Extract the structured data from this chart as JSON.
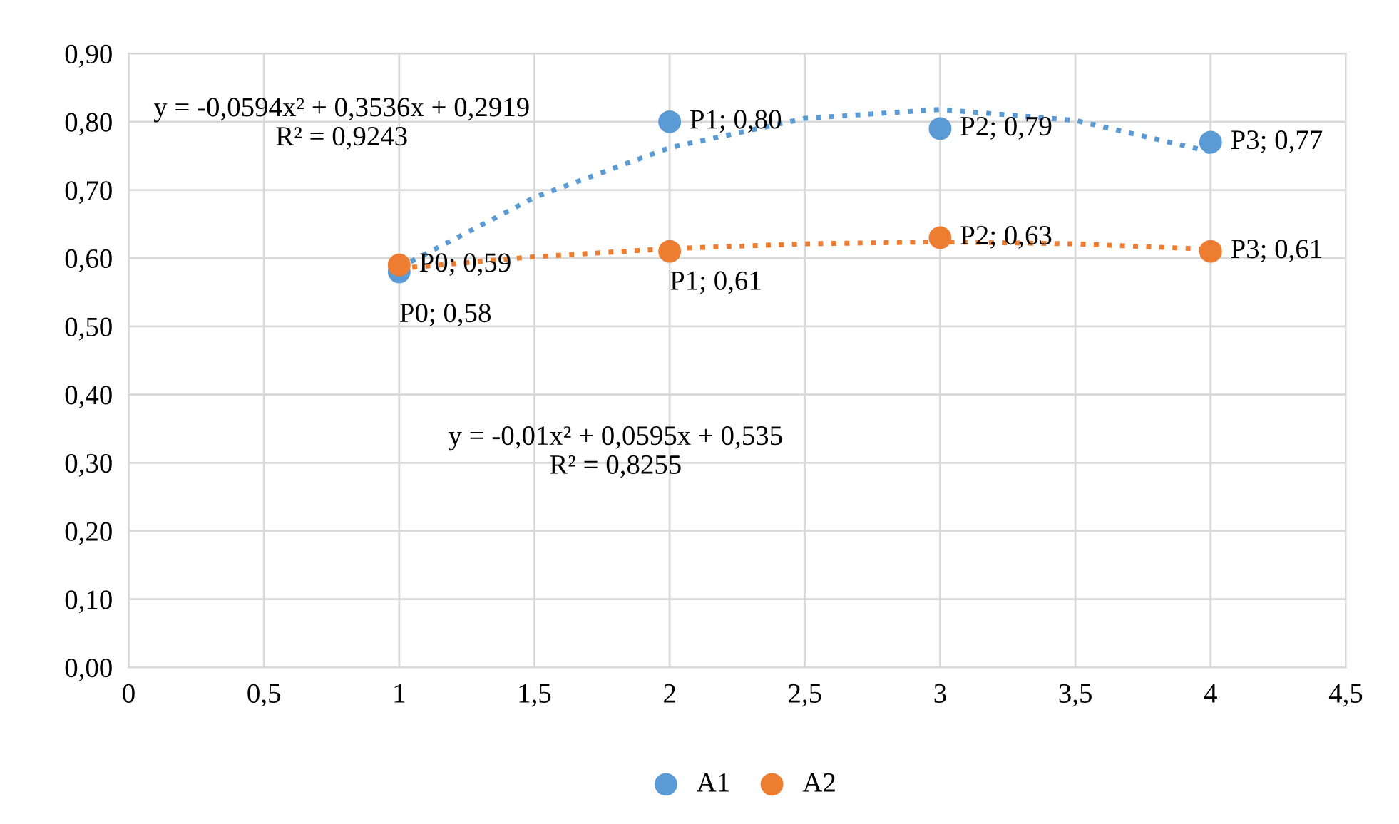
{
  "chart_data": {
    "type": "scatter",
    "xlim": [
      0,
      4.5
    ],
    "ylim": [
      0,
      0.9
    ],
    "xticks": [
      0,
      {
        "value": 0.5,
        "label": "0,5"
      },
      1,
      {
        "value": 1.5,
        "label": "1,5"
      },
      2,
      {
        "value": 2.5,
        "label": "2,5"
      },
      3,
      {
        "value": 3.5,
        "label": "3,5"
      },
      4,
      {
        "value": 4.5,
        "label": "4,5"
      }
    ],
    "yticks": [
      {
        "value": 0,
        "label": "0,00"
      },
      {
        "value": 0.1,
        "label": "0,10"
      },
      {
        "value": 0.2,
        "label": "0,20"
      },
      {
        "value": 0.3,
        "label": "0,30"
      },
      {
        "value": 0.4,
        "label": "0,40"
      },
      {
        "value": 0.5,
        "label": "0,50"
      },
      {
        "value": 0.6,
        "label": "0,60"
      },
      {
        "value": 0.7,
        "label": "0,70"
      },
      {
        "value": 0.8,
        "label": "0,80"
      },
      {
        "value": 0.9,
        "label": "0,90"
      }
    ],
    "grid": true,
    "legend": "bottom",
    "series": [
      {
        "name": "A1",
        "marker": "circle",
        "color": "#5b9bd5",
        "x": [
          1,
          2,
          3,
          4
        ],
        "values": [
          0.58,
          0.8,
          0.79,
          0.77
        ],
        "value_labels": [
          "P0; 0,58",
          "P1; 0,80",
          "P2; 0,79",
          "P3; 0,77"
        ]
      },
      {
        "name": "A2",
        "marker": "circle",
        "color": "#ed7d31",
        "x": [
          1,
          2,
          3,
          4
        ],
        "values": [
          0.59,
          0.61,
          0.63,
          0.61
        ],
        "value_labels": [
          "P0; 0,59",
          "P1; 0,61",
          "P2; 0,63",
          "P3; 0,61"
        ]
      },
      {
        "type": "line",
        "color": "#5b9bd5",
        "line_style": "dotted",
        "marker": "none",
        "x": [
          1,
          1.5,
          2,
          2.5,
          3,
          3.5,
          4
        ],
        "values": [
          0.586,
          0.689,
          0.762,
          0.805,
          0.818,
          0.802,
          0.756
        ]
      },
      {
        "type": "line",
        "color": "#ed7d31",
        "line_style": "dotted",
        "marker": "none",
        "x": [
          1,
          1.5,
          2,
          2.5,
          3,
          3.5,
          4
        ],
        "values": [
          0.585,
          0.602,
          0.614,
          0.621,
          0.624,
          0.621,
          0.613
        ]
      }
    ],
    "annotations": [
      "y = -0,0594x² + 0,3536x + 0,2919\nR² = 0,9243",
      "y = -0,01x² + 0,0595x + 0,535\nR² = 0,8255"
    ]
  }
}
